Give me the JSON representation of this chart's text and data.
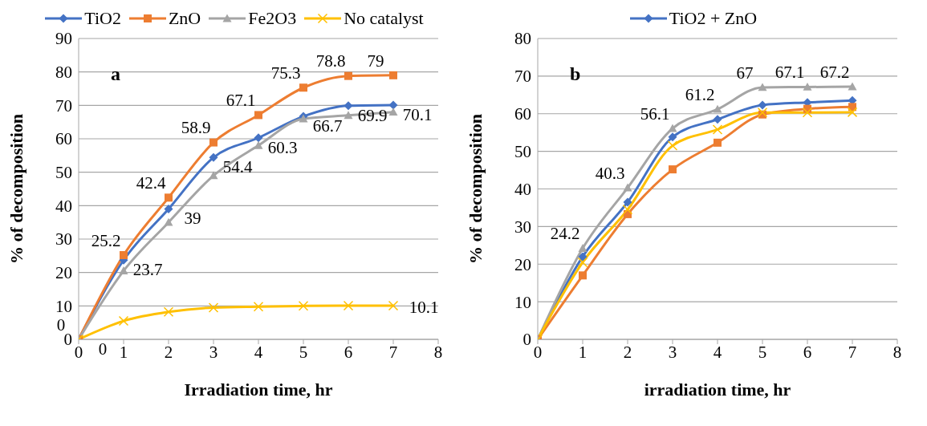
{
  "chart_data": [
    {
      "type": "line",
      "xlabel": "Irradiation time, hr",
      "ylabel": "% of  decomposition",
      "annotations": [
        "a"
      ],
      "x": [
        0,
        1,
        2,
        3,
        4,
        5,
        6,
        7
      ],
      "xlim": [
        0,
        8
      ],
      "xticks": [
        0,
        1,
        2,
        3,
        4,
        5,
        6,
        7,
        8
      ],
      "ylim": [
        0,
        90
      ],
      "yticks": [
        0,
        10,
        20,
        30,
        40,
        50,
        60,
        70,
        80,
        90
      ],
      "grid": "y",
      "legend": "top",
      "series": [
        {
          "name": "TiO2",
          "color": "#4472c4",
          "marker": "diamond",
          "values": [
            0,
            23.7,
            39,
            54.4,
            60.3,
            66.7,
            69.9,
            70.1
          ],
          "value_labels": [
            "0",
            "23.7",
            "39",
            "54.4",
            "60.3",
            "66.7",
            "69.9",
            "70.1"
          ]
        },
        {
          "name": "ZnO",
          "color": "#ed7d31",
          "marker": "square",
          "values": [
            0,
            25.2,
            42.4,
            58.9,
            67.1,
            75.3,
            78.8,
            79
          ],
          "value_labels": [
            "0",
            "25.2",
            "42.4",
            "58.9",
            "67.1",
            "75.3",
            "78.8",
            "79"
          ]
        },
        {
          "name": "Fe2O3",
          "color": "#a5a5a5",
          "marker": "triangle",
          "values": [
            0,
            20.5,
            35,
            49,
            58,
            66,
            67,
            68
          ]
        },
        {
          "name": "No catalyst",
          "color": "#ffc000",
          "marker": "cross",
          "values": [
            0,
            5.5,
            8.2,
            9.5,
            9.8,
            10,
            10.1,
            10.1
          ],
          "value_labels": [
            null,
            null,
            null,
            null,
            null,
            null,
            null,
            "10.1"
          ]
        }
      ]
    },
    {
      "type": "line",
      "xlabel": "irradiation time, hr",
      "ylabel": "% of  decomposition",
      "annotations": [
        "b"
      ],
      "x": [
        0,
        1,
        2,
        3,
        4,
        5,
        6,
        7
      ],
      "xlim": [
        0,
        8
      ],
      "xticks": [
        0,
        1,
        2,
        3,
        4,
        5,
        6,
        7,
        8
      ],
      "ylim": [
        0,
        80
      ],
      "yticks": [
        0,
        10,
        20,
        30,
        40,
        50,
        60,
        70,
        80
      ],
      "grid": "y",
      "legend": "top",
      "series": [
        {
          "name": "TiO2 + ZnO",
          "color": "#4472c4",
          "marker": "diamond",
          "values": [
            0,
            22,
            36.5,
            53.8,
            58.5,
            62.3,
            63,
            63.5
          ]
        },
        {
          "color": "#ed7d31",
          "marker": "square",
          "values": [
            0,
            17,
            33.3,
            45.2,
            52.3,
            59.8,
            61.3,
            61.8
          ]
        },
        {
          "color": "#a5a5a5",
          "marker": "triangle",
          "values": [
            0,
            24.2,
            40.3,
            56.1,
            61.2,
            67,
            67.1,
            67.2
          ],
          "value_labels": [
            null,
            "24.2",
            "40.3",
            "56.1",
            "61.2",
            "67",
            "67.1",
            "67.2"
          ]
        },
        {
          "color": "#ffc000",
          "marker": "cross",
          "values": [
            0,
            20.5,
            34.5,
            51.5,
            55.8,
            60.3,
            60.3,
            60.4
          ]
        }
      ]
    }
  ]
}
